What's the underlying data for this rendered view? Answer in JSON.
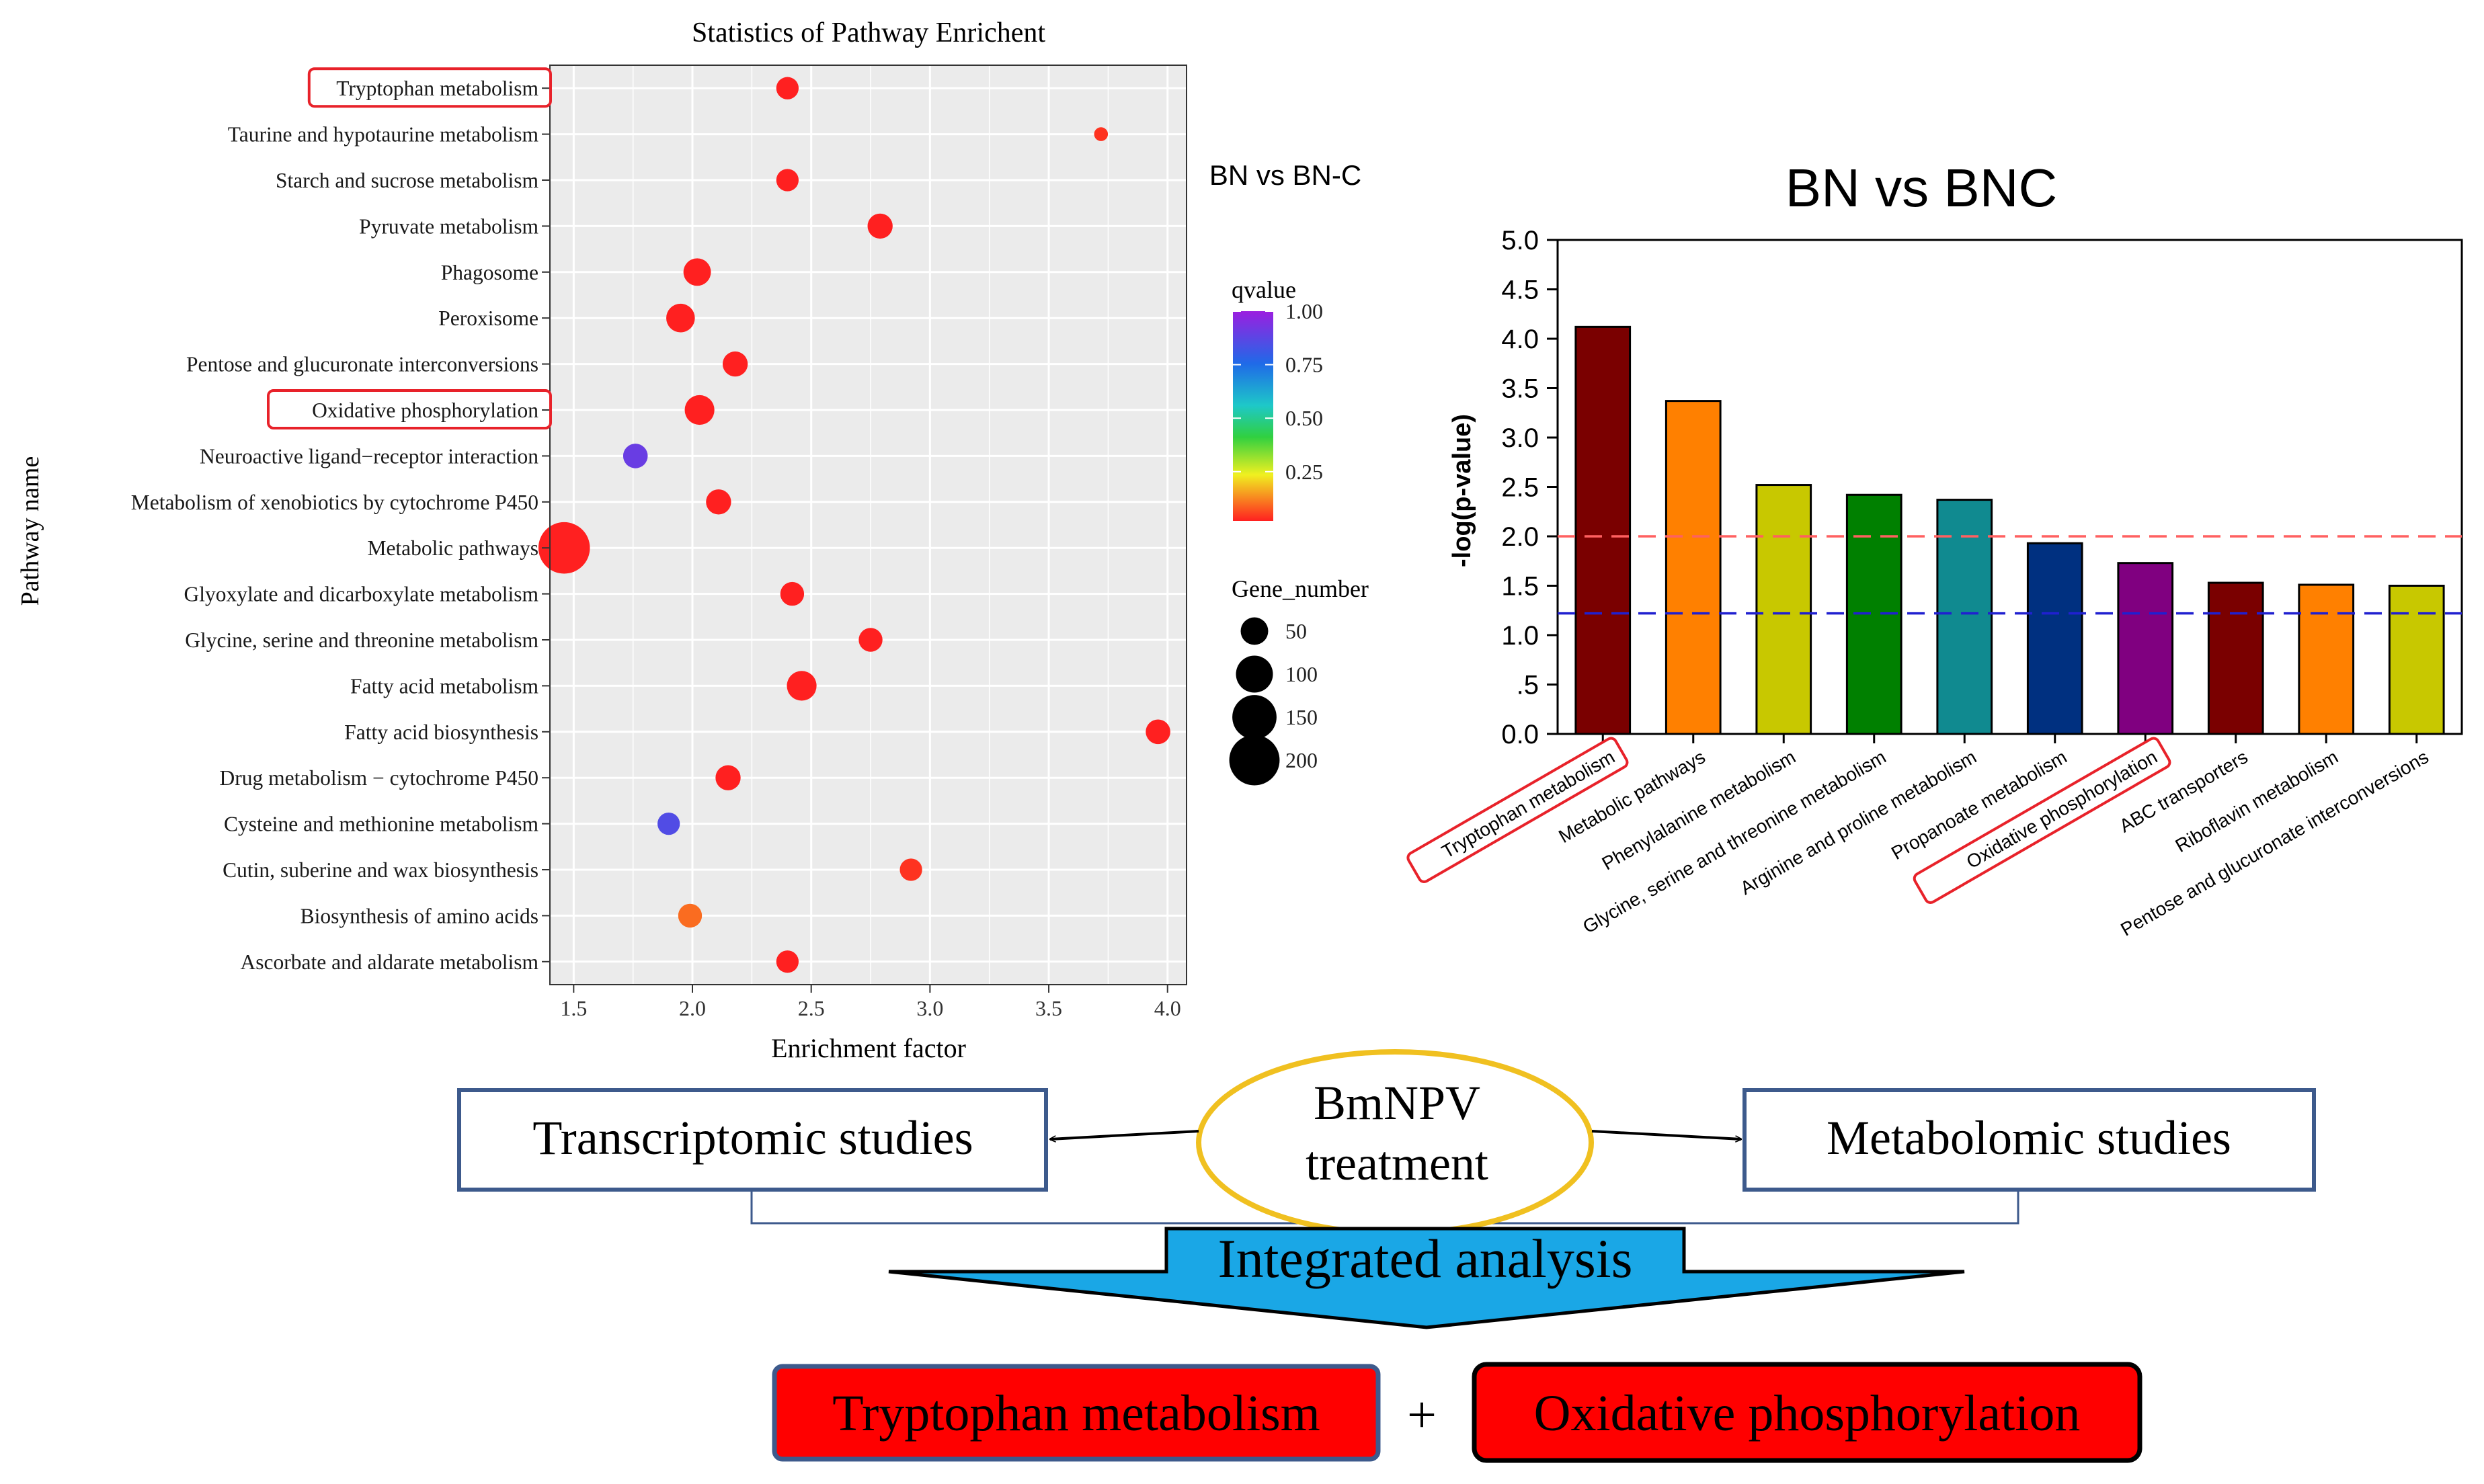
{
  "colors": {
    "red_outline": "#e8222a",
    "box_blue": "#3d5a8c",
    "ellipse_gold": "#f0c020",
    "arrow_fill": "#1aa7e6",
    "result_red": "#ff0000",
    "threshold_red": "#ff6060",
    "threshold_blue": "#2020d0"
  },
  "chart_data": [
    {
      "type": "scatter",
      "title": "Statistics of Pathway Enrichent",
      "subtitle": "BN vs BN-C",
      "xlabel": "Enrichment factor",
      "ylabel": "Pathway name",
      "xlim": [
        1.4,
        4.08
      ],
      "xticks": [
        "1.5",
        "2.0",
        "2.5",
        "3.0",
        "3.5",
        "4.0"
      ],
      "xtick_values": [
        1.5,
        2.0,
        2.5,
        3.0,
        3.5,
        4.0
      ],
      "grid": true,
      "highlighted": [
        "Tryptophan metabolism",
        "Oxidative phosphorylation"
      ],
      "points": [
        {
          "pathway": "Tryptophan metabolism",
          "x": 2.4,
          "gene_number": 30,
          "qvalue": 0.0
        },
        {
          "pathway": "Taurine and hypotaurine metabolism",
          "x": 3.72,
          "gene_number": 8,
          "qvalue": 0.02
        },
        {
          "pathway": "Starch and sucrose metabolism",
          "x": 2.4,
          "gene_number": 30,
          "qvalue": 0.0
        },
        {
          "pathway": "Pyruvate metabolism",
          "x": 2.79,
          "gene_number": 40,
          "qvalue": 0.0
        },
        {
          "pathway": "Phagosome",
          "x": 2.02,
          "gene_number": 50,
          "qvalue": 0.0
        },
        {
          "pathway": "Peroxisome",
          "x": 1.95,
          "gene_number": 55,
          "qvalue": 0.0
        },
        {
          "pathway": "Pentose and glucuronate interconversions",
          "x": 2.18,
          "gene_number": 40,
          "qvalue": 0.0
        },
        {
          "pathway": "Oxidative phosphorylation",
          "x": 2.03,
          "gene_number": 60,
          "qvalue": 0.0
        },
        {
          "pathway": "Neuroactive ligand−receptor interaction",
          "x": 1.76,
          "gene_number": 38,
          "qvalue": 0.9
        },
        {
          "pathway": "Metabolism of xenobiotics by cytochrome P450",
          "x": 2.11,
          "gene_number": 40,
          "qvalue": 0.0
        },
        {
          "pathway": "Metabolic pathways",
          "x": 1.46,
          "gene_number": 210,
          "qvalue": 0.0
        },
        {
          "pathway": "Glyoxylate and dicarboxylate metabolism",
          "x": 2.42,
          "gene_number": 35,
          "qvalue": 0.0
        },
        {
          "pathway": "Glycine, serine and threonine metabolism",
          "x": 2.75,
          "gene_number": 35,
          "qvalue": 0.0
        },
        {
          "pathway": "Fatty acid metabolism",
          "x": 2.46,
          "gene_number": 60,
          "qvalue": 0.0
        },
        {
          "pathway": "Fatty acid biosynthesis",
          "x": 3.96,
          "gene_number": 38,
          "qvalue": 0.0
        },
        {
          "pathway": "Drug metabolism − cytochrome P450",
          "x": 2.15,
          "gene_number": 40,
          "qvalue": 0.0
        },
        {
          "pathway": "Cysteine and methionine metabolism",
          "x": 1.9,
          "gene_number": 30,
          "qvalue": 0.85
        },
        {
          "pathway": "Cutin, suberine and wax biosynthesis",
          "x": 2.92,
          "gene_number": 30,
          "qvalue": 0.02
        },
        {
          "pathway": "Biosynthesis of amino acids",
          "x": 1.99,
          "gene_number": 35,
          "qvalue": 0.08
        },
        {
          "pathway": "Ascorbate and aldarate metabolism",
          "x": 2.4,
          "gene_number": 30,
          "qvalue": 0.0
        }
      ],
      "legend": {
        "qvalue_title": "qvalue",
        "qvalue_ticks": [
          "1.00",
          "0.75",
          "0.50",
          "0.25"
        ],
        "qvalue_tick_values": [
          1.0,
          0.75,
          0.5,
          0.25
        ],
        "gene_title": "Gene_number",
        "gene_ticks": [
          "50",
          "100",
          "150",
          "200"
        ],
        "gene_tick_values": [
          50,
          100,
          150,
          200
        ]
      }
    },
    {
      "type": "bar",
      "title": "BN vs BNC",
      "ylabel": "-log(p-value)",
      "ylim": [
        0,
        5.0
      ],
      "yticks": [
        "0.0",
        ".5",
        "1.0",
        "1.5",
        "2.0",
        "2.5",
        "3.0",
        "3.5",
        "4.0",
        "4.5",
        "5.0"
      ],
      "ytick_values": [
        0.0,
        0.5,
        1.0,
        1.5,
        2.0,
        2.5,
        3.0,
        3.5,
        4.0,
        4.5,
        5.0
      ],
      "threshold_lines": [
        2.0,
        1.22
      ],
      "categories": [
        "Tryptophan metabolism",
        "Metabolic pathways",
        "Phenylalanine metabolism",
        "Glycine, serine and threonine metabolism",
        "Arginine and proline metabolism",
        "Propanoate metabolism",
        "Oxidative phosphorylation",
        "ABC transporters",
        "Riboflavin metabolism",
        "Pentose and glucuronate interconversions"
      ],
      "values": [
        4.12,
        3.37,
        2.52,
        2.42,
        2.37,
        1.93,
        1.73,
        1.53,
        1.51,
        1.5
      ],
      "bar_colors": [
        "#7a0000",
        "#ff8000",
        "#c8c800",
        "#008000",
        "#108a90",
        "#003080",
        "#800080",
        "#7a0000",
        "#ff8000",
        "#c8c800"
      ],
      "highlighted": [
        "Tryptophan metabolism",
        "Oxidative phosphorylation"
      ]
    }
  ],
  "flow": {
    "transcriptomic": "Transcriptomic studies",
    "metabolomic": "Metabolomic studies",
    "treatment_line1": "BmNPV",
    "treatment_line2": "treatment",
    "integrated": "Integrated analysis",
    "result_left": "Tryptophan metabolism",
    "plus": "+",
    "result_right": "Oxidative phosphorylation"
  }
}
